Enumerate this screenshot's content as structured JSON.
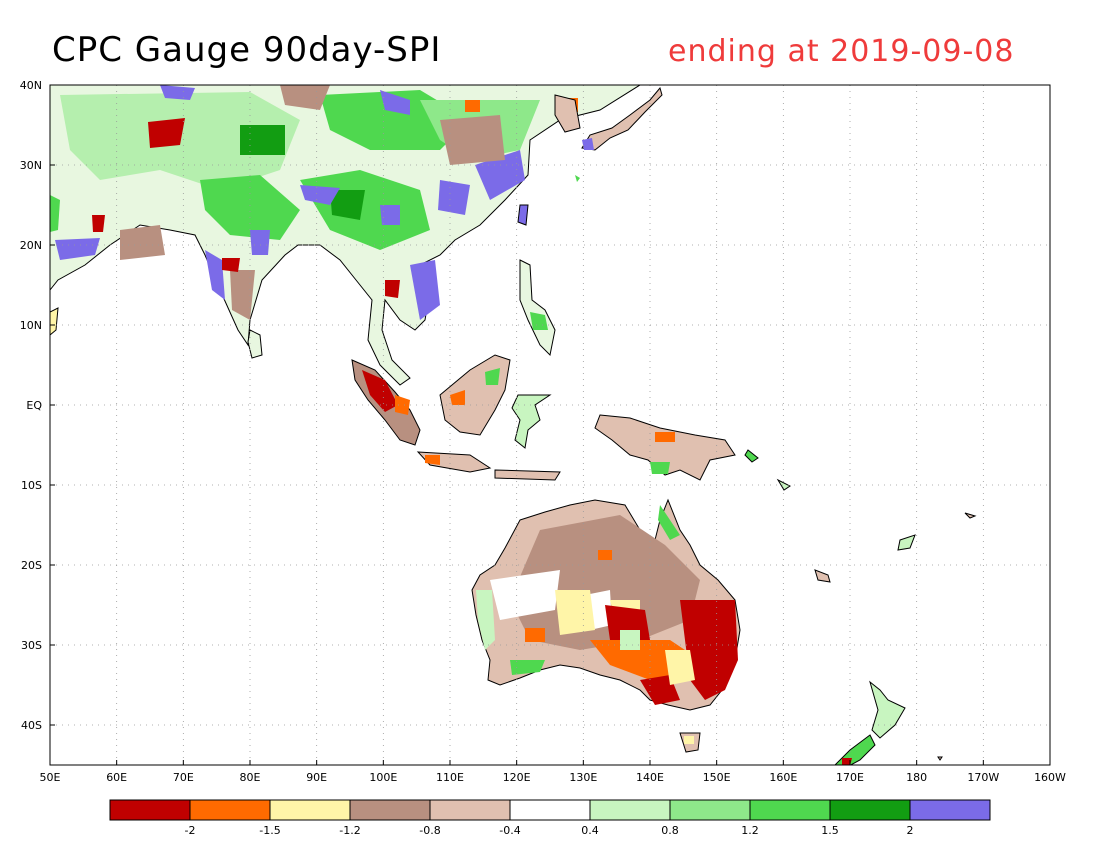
{
  "header": {
    "title": "CPC Gauge 90day-SPI",
    "subtitle": "ending at 2019-09-08",
    "subtitle_color": "#ef3b3b"
  },
  "map": {
    "lon_range": [
      50,
      200
    ],
    "lat_range": [
      -45,
      40
    ],
    "lon_ticks": [
      {
        "value": 50,
        "label": "50E"
      },
      {
        "value": 60,
        "label": "60E"
      },
      {
        "value": 70,
        "label": "70E"
      },
      {
        "value": 80,
        "label": "80E"
      },
      {
        "value": 90,
        "label": "90E"
      },
      {
        "value": 100,
        "label": "100E"
      },
      {
        "value": 110,
        "label": "110E"
      },
      {
        "value": 120,
        "label": "120E"
      },
      {
        "value": 130,
        "label": "130E"
      },
      {
        "value": 140,
        "label": "140E"
      },
      {
        "value": 150,
        "label": "150E"
      },
      {
        "value": 160,
        "label": "160E"
      },
      {
        "value": 170,
        "label": "170E"
      },
      {
        "value": 180,
        "label": "180"
      },
      {
        "value": 190,
        "label": "170W"
      },
      {
        "value": 200,
        "label": "160W"
      }
    ],
    "lat_ticks": [
      {
        "value": 40,
        "label": "40N"
      },
      {
        "value": 30,
        "label": "30N"
      },
      {
        "value": 20,
        "label": "20N"
      },
      {
        "value": 10,
        "label": "10N"
      },
      {
        "value": 0,
        "label": "EQ"
      },
      {
        "value": -10,
        "label": "10S"
      },
      {
        "value": -20,
        "label": "20S"
      },
      {
        "value": -30,
        "label": "30S"
      },
      {
        "value": -40,
        "label": "40S"
      }
    ],
    "grid": "dotted"
  },
  "legend": {
    "colors": [
      "#c00000",
      "#ff6a00",
      "#fff5a8",
      "#b89080",
      "#e0c0b0",
      "#ffffff",
      "#c8f5c0",
      "#8ee88a",
      "#4fd84f",
      "#129d12",
      "#7b6be8"
    ],
    "labels": [
      "-2",
      "-1.5",
      "-1.2",
      "-0.8",
      "-0.4",
      "0.4",
      "0.8",
      "1.2",
      "1.5",
      "2"
    ]
  },
  "regions": {
    "asia_wet": "#7b6be8",
    "green": "#4fd84f",
    "dark_green": "#129d12",
    "light_green": "#c8f5c0",
    "brown": "#b89080",
    "light_brown": "#e0c0b0",
    "red": "#c00000",
    "orange": "#ff6a00",
    "yellow": "#fff5a8"
  }
}
